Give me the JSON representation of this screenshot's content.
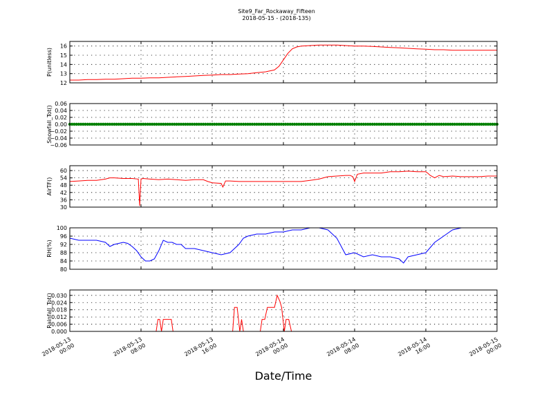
{
  "figure": {
    "title": "Site9_Far_Rockaway_Fifteen",
    "subtitle": "2018-05-15 - (2018-135)",
    "xlabel": "Date/Time",
    "x_ticks": [
      {
        "line1": "2018-05-13",
        "line2": "00:00",
        "hours": 0
      },
      {
        "line1": "2018-05-13",
        "line2": "08:00",
        "hours": 8
      },
      {
        "line1": "2018-05-13",
        "line2": "16:00",
        "hours": 16
      },
      {
        "line1": "2018-05-14",
        "line2": "00:00",
        "hours": 24
      },
      {
        "line1": "2018-05-14",
        "line2": "08:00",
        "hours": 32
      },
      {
        "line1": "2018-05-14",
        "line2": "16:00",
        "hours": 40
      },
      {
        "line1": "2018-05-15",
        "line2": "00:00",
        "hours": 48
      }
    ]
  },
  "chart_data": [
    {
      "type": "line",
      "ylabel": "P(unitless)",
      "color": "#ff0000",
      "ylim": [
        12,
        16.5
      ],
      "yticks": [
        12,
        13,
        14,
        15,
        16
      ],
      "ytick_labels": [
        "12",
        "13",
        "14",
        "15",
        "16"
      ],
      "x": [
        0,
        1,
        2,
        3,
        4,
        5,
        6,
        7,
        8,
        9,
        10,
        11,
        12,
        13,
        14,
        15,
        16,
        17,
        18,
        19,
        20,
        21,
        22,
        23,
        23.5,
        24,
        24.5,
        25,
        25.5,
        26,
        27,
        28,
        29,
        30,
        31,
        32,
        33,
        34,
        35,
        36,
        37,
        38,
        39,
        40,
        41,
        42,
        43,
        44,
        45,
        46,
        47,
        48
      ],
      "values": [
        12.3,
        12.3,
        12.35,
        12.35,
        12.4,
        12.4,
        12.45,
        12.5,
        12.5,
        12.55,
        12.55,
        12.6,
        12.65,
        12.7,
        12.75,
        12.8,
        12.85,
        12.9,
        12.9,
        12.95,
        13.0,
        13.1,
        13.2,
        13.4,
        13.8,
        14.5,
        15.2,
        15.7,
        15.9,
        16.0,
        16.05,
        16.1,
        16.1,
        16.1,
        16.05,
        16.0,
        16.0,
        15.95,
        15.9,
        15.85,
        15.8,
        15.75,
        15.7,
        15.65,
        15.6,
        15.6,
        15.55,
        15.55,
        15.55,
        15.55,
        15.55,
        15.55
      ]
    },
    {
      "type": "scatter",
      "ylabel": "Snowfall_Tot()",
      "color": "#008000",
      "ylim": [
        -0.06,
        0.06
      ],
      "yticks": [
        -0.06,
        -0.04,
        -0.02,
        0.0,
        0.02,
        0.04,
        0.06
      ],
      "ytick_labels": [
        "−0.06",
        "−0.04",
        "−0.02",
        "0.00",
        "0.02",
        "0.04",
        "0.06"
      ],
      "x_start": 0,
      "x_step": 0.25,
      "x_end": 48,
      "constant_value": 0.0
    },
    {
      "type": "line",
      "ylabel": "AirTF()",
      "color": "#ff0000",
      "ylim": [
        30,
        64
      ],
      "yticks": [
        30,
        36,
        42,
        48,
        54,
        60
      ],
      "ytick_labels": [
        "30",
        "36",
        "42",
        "48",
        "54",
        "60"
      ],
      "x": [
        0,
        1,
        2,
        3,
        4,
        4.5,
        5,
        6,
        7,
        7.7,
        7.85,
        8,
        8.2,
        9,
        10,
        11,
        12,
        13,
        14,
        15,
        15.5,
        16,
        17,
        17.2,
        17.5,
        18,
        19,
        20,
        21,
        22,
        23,
        24,
        25,
        26,
        27,
        28,
        29,
        30,
        31,
        31.5,
        31.8,
        32,
        32.3,
        33,
        34,
        35,
        36,
        37,
        38,
        39,
        40,
        40.2,
        40.5,
        41,
        41.5,
        42,
        43,
        44,
        45,
        46,
        47,
        48
      ],
      "values": [
        51,
        51.5,
        52,
        52,
        53,
        54,
        54,
        53.5,
        53.5,
        53,
        31,
        53,
        53.5,
        53,
        52.5,
        53,
        52.5,
        52,
        52.5,
        52.5,
        51,
        50,
        49.5,
        46.5,
        51.5,
        51.5,
        51,
        51,
        51,
        51,
        51,
        51,
        51,
        51,
        52,
        53,
        55,
        55.5,
        56,
        56,
        55,
        51,
        57,
        58,
        58,
        58,
        59,
        59,
        59.5,
        59,
        59,
        58,
        56,
        54,
        56,
        55,
        55.5,
        55,
        55,
        55,
        55.5,
        55.5
      ]
    },
    {
      "type": "line",
      "ylabel": "RH(%)",
      "color": "#0000ff",
      "ylim": [
        80,
        100
      ],
      "yticks": [
        80,
        84,
        88,
        92,
        96,
        100
      ],
      "ytick_labels": [
        "80",
        "84",
        "88",
        "92",
        "96",
        "100"
      ],
      "x": [
        0,
        1,
        2,
        3,
        4,
        4.5,
        5,
        6,
        6.5,
        7,
        7.5,
        8,
        8.5,
        9,
        9.5,
        10,
        10.5,
        11,
        11.5,
        12,
        12.5,
        13,
        14,
        15,
        16,
        17,
        18,
        19,
        19.5,
        20,
        21,
        22,
        23,
        24,
        25,
        26,
        27,
        28,
        29,
        30,
        31,
        32,
        33,
        34,
        35,
        36,
        37,
        37.5,
        38,
        39,
        40,
        41,
        42,
        43,
        44,
        45,
        46,
        47,
        48
      ],
      "values": [
        95,
        94,
        94,
        94,
        93,
        91,
        92,
        93,
        92.5,
        91,
        89,
        86,
        84,
        84,
        85,
        89,
        94,
        93,
        93,
        92,
        92,
        90,
        90,
        89,
        88,
        87,
        88,
        92,
        95,
        96,
        97,
        97,
        98,
        98,
        99,
        99,
        100,
        100,
        99,
        95,
        87,
        88,
        86,
        87,
        86,
        86,
        85,
        83,
        86,
        87,
        88,
        93,
        96,
        99,
        100,
        100,
        100,
        100,
        100
      ]
    },
    {
      "type": "line",
      "ylabel": "Rainfall_Tot()",
      "color": "#ff0000",
      "ylim": [
        0,
        0.0345
      ],
      "yticks": [
        0.0,
        0.006,
        0.012,
        0.018,
        0.024,
        0.03
      ],
      "ytick_labels": [
        "0.000",
        "0.006",
        "0.012",
        "0.018",
        "0.024",
        "0.030"
      ],
      "x": [
        0,
        9.7,
        9.9,
        10.1,
        10.3,
        10.5,
        10.7,
        11.4,
        11.6,
        18.3,
        18.5,
        18.8,
        19.1,
        19.3,
        19.5,
        19.7,
        21.4,
        21.6,
        21.9,
        22.2,
        22.5,
        22.7,
        23.0,
        23.3,
        23.6,
        23.8,
        24.1,
        24.3,
        24.6,
        24.9,
        48
      ],
      "values": [
        0,
        0,
        0.01,
        0.01,
        0,
        0.01,
        0.01,
        0.01,
        0,
        0,
        0.02,
        0.02,
        0,
        0.01,
        0,
        0,
        0,
        0.01,
        0.01,
        0.02,
        0.02,
        0.02,
        0.02,
        0.03,
        0.025,
        0.02,
        0,
        0.01,
        0.01,
        0,
        0
      ]
    }
  ]
}
